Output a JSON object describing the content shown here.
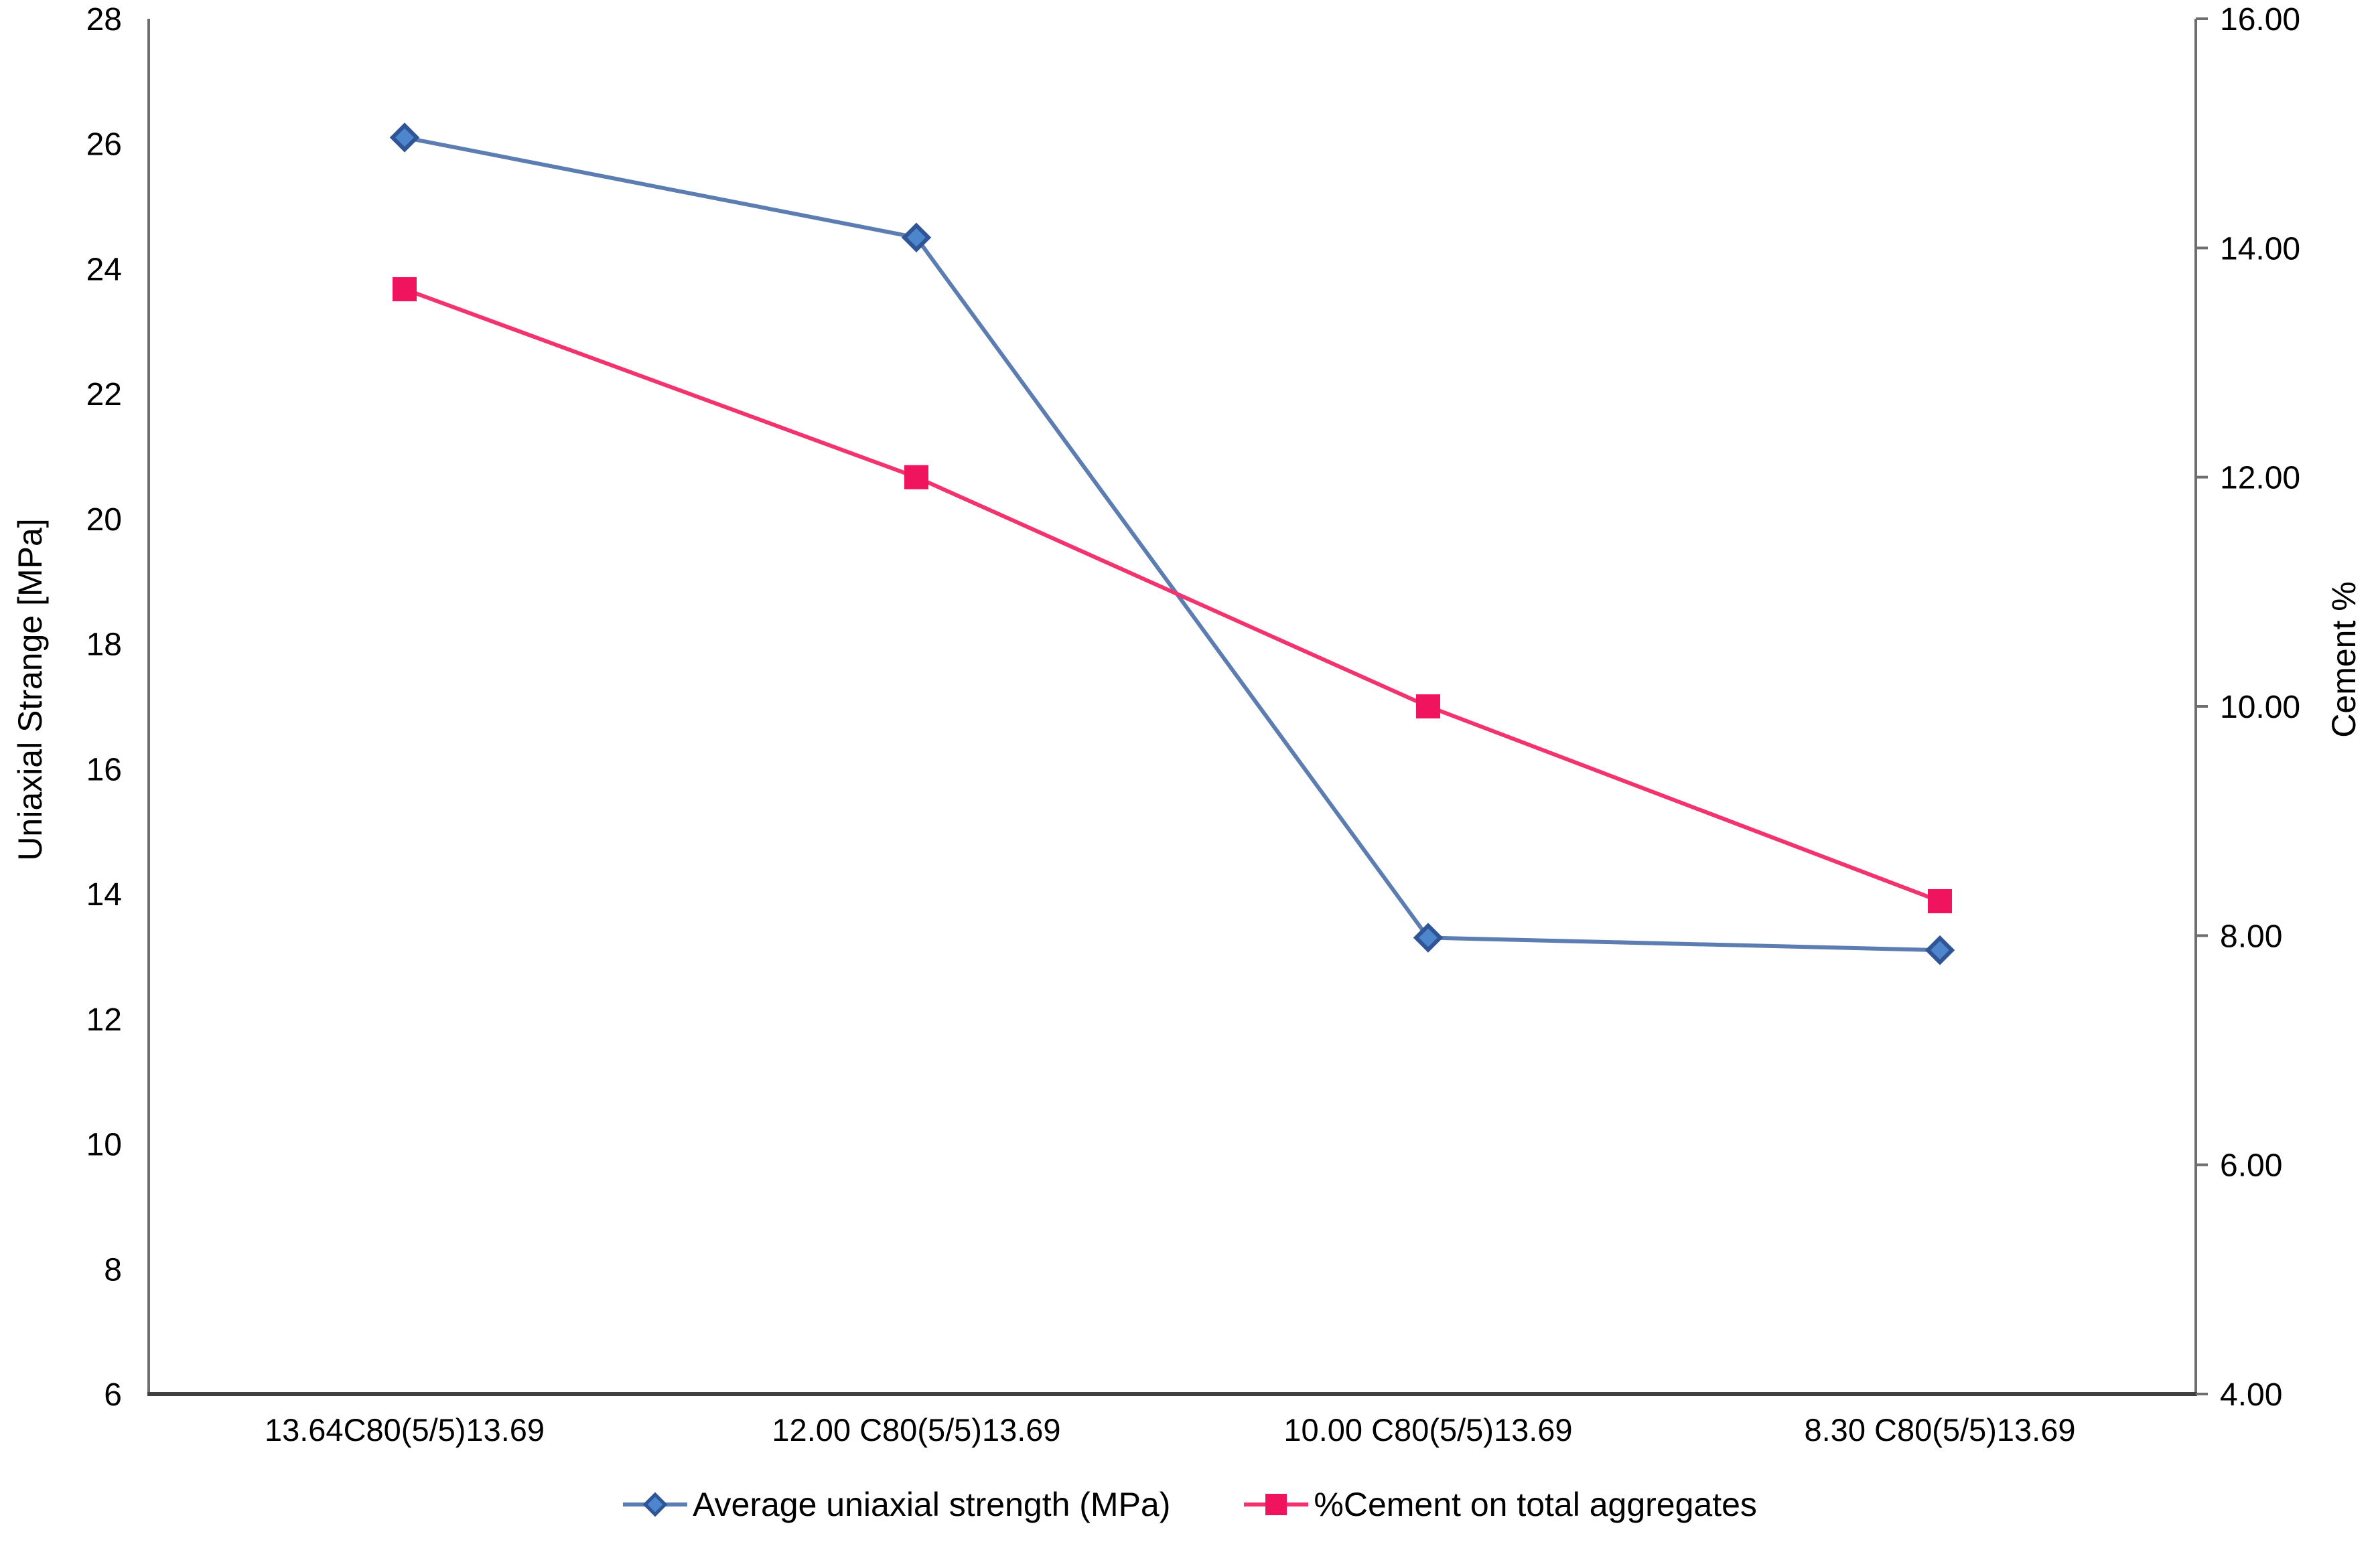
{
  "chart_data": {
    "type": "line",
    "title": "",
    "categories": [
      "13.64C80(5/5)13.69",
      "12.00 C80(5/5)13.69",
      "10.00 C80(5/5)13.69",
      "8.30 C80(5/5)13.69"
    ],
    "series": [
      {
        "name": "Average uniaxial strength (MPa)",
        "axis": "left",
        "marker": "diamond",
        "values": [
          26.1,
          24.5,
          13.3,
          13.1
        ],
        "line_color": "#5B7DB1",
        "marker_fill": "#4E86CE",
        "marker_edge": "#2F5597"
      },
      {
        "name": "%Cement on total aggregates",
        "axis": "right",
        "marker": "square",
        "values": [
          13.64,
          12.0,
          10.0,
          8.3
        ],
        "line_color": "#F2336E",
        "marker_fill": "#F0135E",
        "marker_edge": "#F0135E"
      }
    ],
    "left_axis": {
      "label": "Uniaxial Strange [MPa]",
      "min": 6,
      "max": 28,
      "step": 2,
      "ticks": [
        "28",
        "26",
        "24",
        "22",
        "20",
        "18",
        "16",
        "14",
        "12",
        "10",
        "8",
        "6"
      ]
    },
    "right_axis": {
      "label": "Cement %",
      "min": 4,
      "max": 16,
      "step": 2,
      "ticks": [
        "16.00",
        "14.00",
        "12.00",
        "10.00",
        "8.00",
        "6.00",
        "4.00"
      ]
    },
    "grid": false,
    "legend_position": "bottom",
    "colors": {
      "axis_line": "#6E6E6E",
      "x_axis_line": "#404040",
      "text": "#000000",
      "background": "#FFFFFF"
    }
  }
}
